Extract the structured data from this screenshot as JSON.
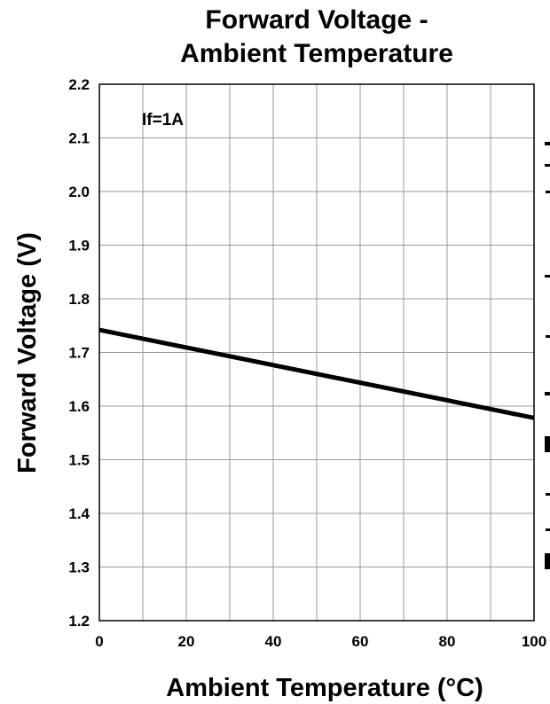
{
  "chart_data": {
    "type": "line",
    "title_lines": [
      "Forward Voltage -",
      "Ambient Temperature"
    ],
    "xlabel": "Ambient Temperature (°C)",
    "ylabel": "Forward Voltage (V)",
    "annotation": "If=1A",
    "xlim": [
      0,
      100
    ],
    "ylim": [
      1.2,
      2.2
    ],
    "x_minor_step": 10,
    "y_step": 0.1,
    "x_ticks": [
      "0",
      "20",
      "40",
      "60",
      "80",
      "100"
    ],
    "x_tick_values": [
      0,
      20,
      40,
      60,
      80,
      100
    ],
    "y_ticks": [
      "1.2",
      "1.3",
      "1.4",
      "1.5",
      "1.6",
      "1.7",
      "1.8",
      "1.9",
      "2.0",
      "2.1",
      "2.2"
    ],
    "y_tick_values": [
      1.2,
      1.3,
      1.4,
      1.5,
      1.6,
      1.7,
      1.8,
      1.9,
      2.0,
      2.1,
      2.2
    ],
    "grid": true,
    "series": [
      {
        "x": [
          0,
          100
        ],
        "y": [
          1.742,
          1.578
        ],
        "color": "#000000"
      }
    ]
  }
}
